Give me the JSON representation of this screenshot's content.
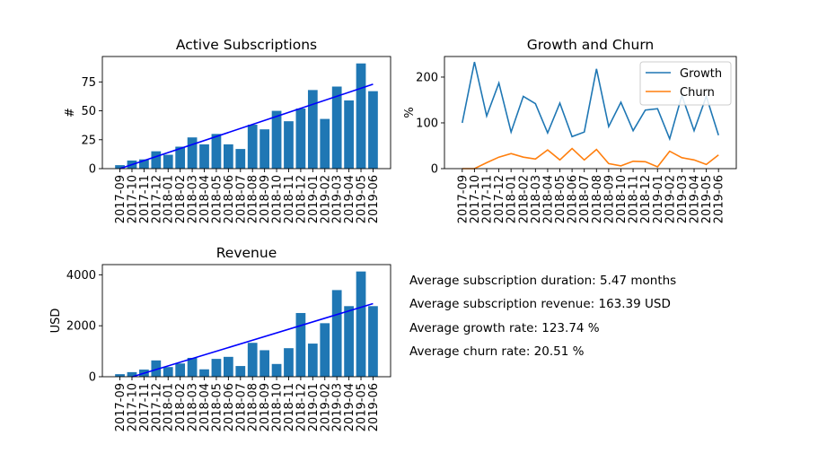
{
  "months": [
    "2017-09",
    "2017-10",
    "2017-11",
    "2017-12",
    "2018-01",
    "2018-02",
    "2018-03",
    "2018-04",
    "2018-05",
    "2018-06",
    "2018-07",
    "2018-08",
    "2018-09",
    "2018-10",
    "2018-11",
    "2018-12",
    "2019-01",
    "2019-02",
    "2019-03",
    "2019-04",
    "2019-05",
    "2019-06"
  ],
  "chart_data": [
    {
      "type": "bar",
      "title": "Active Subscriptions",
      "xlabel": "",
      "ylabel": "#",
      "categories": [
        "2017-09",
        "2017-10",
        "2017-11",
        "2017-12",
        "2018-01",
        "2018-02",
        "2018-03",
        "2018-04",
        "2018-05",
        "2018-06",
        "2018-07",
        "2018-08",
        "2018-09",
        "2018-10",
        "2018-11",
        "2018-12",
        "2019-01",
        "2019-02",
        "2019-03",
        "2019-04",
        "2019-05",
        "2019-06"
      ],
      "values": [
        3,
        7,
        8,
        15,
        12,
        19,
        27,
        21,
        30,
        21,
        17,
        38,
        34,
        50,
        41,
        52,
        68,
        43,
        71,
        59,
        91,
        67
      ],
      "trendline": {
        "start": 0,
        "end": 73
      },
      "ylim": [
        0,
        97
      ],
      "yticks": [
        0,
        25,
        50,
        75
      ],
      "grid": false,
      "bar_color": "#1f77b4",
      "trend_color": "#0000ff"
    },
    {
      "type": "line",
      "title": "Growth and Churn",
      "xlabel": "",
      "ylabel": "%",
      "x": [
        "2017-09",
        "2017-10",
        "2017-11",
        "2017-12",
        "2018-01",
        "2018-02",
        "2018-03",
        "2018-04",
        "2018-05",
        "2018-06",
        "2018-07",
        "2018-08",
        "2018-09",
        "2018-10",
        "2018-11",
        "2018-12",
        "2019-01",
        "2019-02",
        "2019-03",
        "2019-04",
        "2019-05",
        "2019-06"
      ],
      "series": [
        {
          "name": "Growth",
          "color": "#1f77b4",
          "values": [
            100,
            233,
            115,
            187,
            80,
            158,
            142,
            78,
            143,
            70,
            80,
            218,
            92,
            145,
            83,
            128,
            131,
            65,
            160,
            83,
            158,
            73
          ]
        },
        {
          "name": "Churn",
          "color": "#ff7f0e",
          "values": [
            0,
            0,
            13,
            25,
            33,
            25,
            21,
            41,
            19,
            44,
            19,
            42,
            11,
            6,
            16,
            15,
            4,
            38,
            24,
            19,
            9,
            30
          ]
        }
      ],
      "ylim": [
        0,
        245
      ],
      "yticks": [
        0,
        100,
        200
      ],
      "legend": "top-right",
      "grid": false
    },
    {
      "type": "bar",
      "title": "Revenue",
      "xlabel": "",
      "ylabel": "USD",
      "categories": [
        "2017-09",
        "2017-10",
        "2017-11",
        "2017-12",
        "2018-01",
        "2018-02",
        "2018-03",
        "2018-04",
        "2018-05",
        "2018-06",
        "2018-07",
        "2018-08",
        "2018-09",
        "2018-10",
        "2018-11",
        "2018-12",
        "2019-01",
        "2019-02",
        "2019-03",
        "2019-04",
        "2019-05",
        "2019-06"
      ],
      "values": [
        100,
        180,
        280,
        640,
        380,
        520,
        740,
        290,
        700,
        780,
        420,
        1330,
        1040,
        500,
        1120,
        2500,
        1300,
        2100,
        3400,
        2770,
        4130,
        2770
      ],
      "trendline": {
        "start": -150,
        "end": 2870
      },
      "ylim": [
        0,
        4400
      ],
      "yticks": [
        0,
        2000,
        4000
      ],
      "grid": false,
      "bar_color": "#1f77b4",
      "trend_color": "#0000ff"
    }
  ],
  "stats": [
    "Average subscription duration: 5.47 months",
    "Average subscription revenue: 163.39 USD",
    "Average growth rate: 123.74 %",
    "Average churn rate: 20.51 %"
  ]
}
